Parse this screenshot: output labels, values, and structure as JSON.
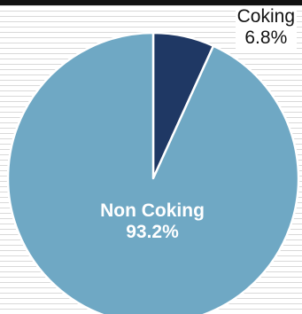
{
  "chart_data": {
    "type": "pie",
    "title": "",
    "slices": [
      {
        "label": "Coking",
        "value": 6.8,
        "value_label": "6.8%",
        "color": "#1f3864"
      },
      {
        "label": "Non Coking",
        "value": 93.2,
        "value_label": "93.2%",
        "color": "#6fa8c4"
      }
    ],
    "start_angle_deg": 0,
    "direction": "clockwise",
    "slice_border_color": "#ffffff",
    "grid": true
  }
}
